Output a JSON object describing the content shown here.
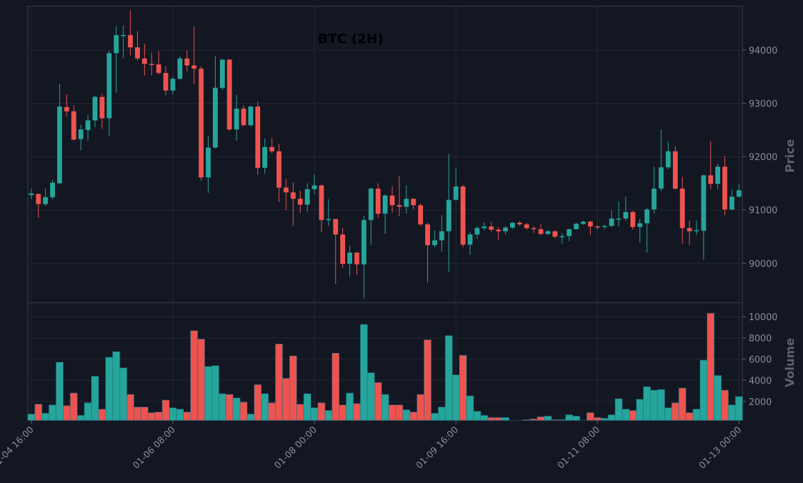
{
  "chart_data": {
    "type": "candlestick",
    "title": "BTC (2H)",
    "x": [
      "01-04 16:00",
      null,
      null,
      null,
      null,
      null,
      null,
      null,
      null,
      null,
      null,
      null,
      null,
      null,
      null,
      null,
      null,
      null,
      null,
      null,
      "01-06 08:00",
      null,
      null,
      null,
      null,
      null,
      null,
      null,
      null,
      null,
      null,
      null,
      null,
      null,
      null,
      null,
      null,
      null,
      null,
      null,
      "01-08 00:00",
      null,
      null,
      null,
      null,
      null,
      null,
      null,
      null,
      null,
      null,
      null,
      null,
      null,
      null,
      null,
      null,
      null,
      null,
      null,
      "01-09 16:00",
      null,
      null,
      null,
      null,
      null,
      null,
      null,
      null,
      null,
      null,
      null,
      null,
      null,
      null,
      null,
      null,
      null,
      null,
      null,
      "01-11 08:00",
      null,
      null,
      null,
      null,
      null,
      null,
      null,
      null,
      null,
      null,
      null,
      null,
      null,
      null,
      null,
      null,
      null,
      null,
      null,
      "01-13 00:00"
    ],
    "open": [
      91280,
      91300,
      91110,
      91240,
      91500,
      92930,
      92850,
      92330,
      92500,
      92680,
      93120,
      92720,
      93940,
      94270,
      94280,
      94050,
      93840,
      93740,
      93730,
      93570,
      93240,
      93460,
      93840,
      93710,
      93650,
      91610,
      92170,
      93290,
      93820,
      92510,
      92900,
      92590,
      92940,
      91790,
      92180,
      92100,
      91420,
      91330,
      91210,
      91100,
      91390,
      91460,
      90810,
      90830,
      90540,
      89990,
      90200,
      89980,
      90810,
      91400,
      90930,
      91270,
      91090,
      91060,
      91210,
      91090,
      90730,
      90340,
      90430,
      90600,
      91190,
      91440,
      90350,
      90540,
      90660,
      90690,
      90630,
      90600,
      90670,
      90760,
      90730,
      90660,
      90640,
      90550,
      90600,
      90500,
      90510,
      90640,
      90740,
      90780,
      90690,
      90680,
      90700,
      90830,
      90840,
      90960,
      90680,
      90750,
      91010,
      91400,
      91800,
      92100,
      91400,
      90660,
      90600,
      90610,
      91650,
      91490,
      91810,
      91010,
      91250
    ],
    "high": [
      91400,
      91310,
      91400,
      91560,
      93370,
      93170,
      92960,
      92600,
      92780,
      93140,
      93190,
      93980,
      94450,
      94460,
      94750,
      94350,
      94120,
      93950,
      93980,
      93700,
      93500,
      93880,
      93990,
      94440,
      93700,
      92390,
      93880,
      93830,
      93830,
      93160,
      92960,
      92950,
      93030,
      92340,
      92350,
      92240,
      91580,
      91520,
      91360,
      91500,
      91670,
      91480,
      91200,
      90830,
      90660,
      90330,
      90210,
      90890,
      91420,
      91500,
      91300,
      91450,
      91640,
      91460,
      91220,
      91120,
      90760,
      90620,
      90900,
      92050,
      91780,
      91470,
      90590,
      90700,
      90770,
      90780,
      90680,
      90700,
      90770,
      90790,
      90760,
      90700,
      90740,
      90620,
      90620,
      90560,
      90650,
      90760,
      90800,
      90800,
      90710,
      90720,
      90990,
      91160,
      91250,
      90980,
      90830,
      91040,
      91810,
      92510,
      92280,
      92200,
      91620,
      90800,
      90800,
      91660,
      92290,
      91870,
      92010,
      91380,
      91490
    ],
    "low": [
      91200,
      90850,
      91070,
      91200,
      91480,
      92750,
      92300,
      92120,
      92300,
      92550,
      92520,
      92380,
      93200,
      93850,
      93900,
      93800,
      93520,
      93530,
      93540,
      93150,
      93170,
      93440,
      93600,
      93360,
      91550,
      91320,
      92150,
      93250,
      92480,
      92300,
      92570,
      92560,
      91660,
      91680,
      92060,
      91150,
      91000,
      90700,
      90950,
      90960,
      91300,
      90590,
      90700,
      89610,
      89920,
      89750,
      89780,
      89340,
      90350,
      90850,
      90550,
      90950,
      90880,
      90930,
      91020,
      90700,
      89640,
      90300,
      90220,
      89840,
      91170,
      90300,
      90160,
      90460,
      90620,
      90590,
      90440,
      90540,
      90640,
      90700,
      90630,
      90570,
      90530,
      90530,
      90470,
      90370,
      90420,
      90630,
      90720,
      90530,
      90630,
      90640,
      90680,
      90690,
      90800,
      90630,
      90390,
      90200,
      90930,
      91350,
      91760,
      91380,
      90370,
      90340,
      90530,
      90070,
      91390,
      91390,
      90900,
      90990,
      91230
    ],
    "close": [
      91310,
      91110,
      91240,
      91510,
      92940,
      92850,
      92320,
      92510,
      92680,
      93120,
      92720,
      93940,
      94280,
      94280,
      94050,
      93840,
      93740,
      93730,
      93570,
      93240,
      93460,
      93840,
      93710,
      93650,
      91610,
      92170,
      93290,
      93820,
      92510,
      92900,
      92590,
      92940,
      91790,
      92180,
      92100,
      91420,
      91330,
      91210,
      91100,
      91390,
      91460,
      90810,
      90830,
      90540,
      89990,
      90200,
      89980,
      90810,
      91400,
      90930,
      91270,
      91090,
      91060,
      91210,
      91090,
      90730,
      90340,
      90430,
      90600,
      91190,
      91440,
      90350,
      90540,
      90660,
      90690,
      90630,
      90600,
      90670,
      90760,
      90730,
      90660,
      90640,
      90550,
      90600,
      90500,
      90510,
      90640,
      90740,
      90780,
      90690,
      90680,
      90700,
      90840,
      90840,
      90960,
      90680,
      90750,
      91010,
      91400,
      91800,
      92100,
      91400,
      90660,
      90600,
      90620,
      91650,
      91490,
      91810,
      91010,
      91250,
      91370
    ],
    "ylabel": "Price",
    "ylim": [
      89260,
      94820
    ],
    "yticks": [
      90000,
      91000,
      92000,
      93000,
      94000
    ],
    "volume": {
      "ylabel": "Volume",
      "ylim": [
        215,
        11320
      ],
      "yticks": [
        2000,
        4000,
        6000,
        8000,
        10000
      ],
      "values": [
        810,
        1740,
        880,
        1670,
        5700,
        1600,
        2800,
        680,
        1870,
        4380,
        1270,
        6170,
        6700,
        5170,
        2660,
        1470,
        1470,
        940,
        1000,
        2130,
        1400,
        1270,
        1000,
        8680,
        7880,
        5300,
        5370,
        2730,
        2660,
        2330,
        1930,
        810,
        3590,
        2730,
        1870,
        7420,
        4180,
        6300,
        1740,
        2730,
        1400,
        1870,
        1140,
        6560,
        1670,
        2790,
        1800,
        9270,
        4710,
        3790,
        2660,
        1670,
        1670,
        1210,
        1000,
        2660,
        7820,
        880,
        1470,
        8210,
        4510,
        6360,
        2530,
        1070,
        680,
        480,
        480,
        480,
        200,
        200,
        280,
        350,
        550,
        610,
        280,
        280,
        740,
        610,
        200,
        940,
        480,
        410,
        740,
        2260,
        1270,
        1140,
        2200,
        3390,
        3060,
        3120,
        1400,
        1870,
        3260,
        940,
        1270,
        5900,
        10330,
        4450,
        3060,
        1670,
        2460
      ]
    },
    "colors": {
      "up": "#26a69a",
      "down": "#ef5350"
    },
    "grid": true
  }
}
